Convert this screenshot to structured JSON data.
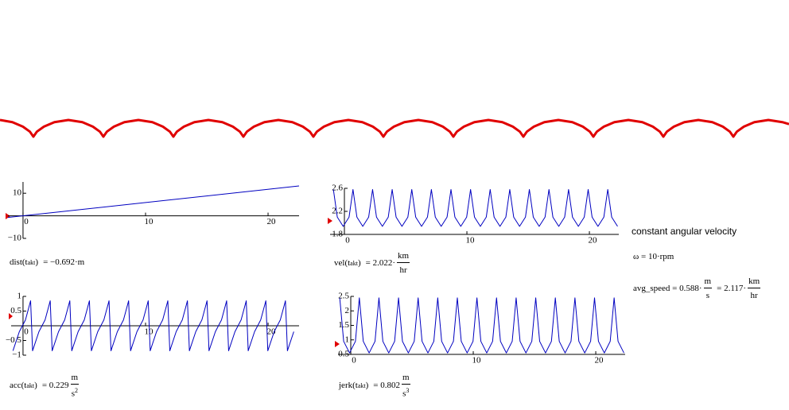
{
  "chart_data": [
    {
      "type": "line",
      "color": "#e00000",
      "x": [
        -0.477,
        -0.3,
        -0.15,
        -0.05,
        0,
        0.05,
        0.15,
        0.3,
        0.5,
        0.7,
        0.85,
        0.95,
        1,
        1.05,
        1.15,
        1.3,
        1.5,
        1.7,
        1.85,
        1.95,
        2,
        2.05,
        2.15,
        2.3,
        2.5,
        2.7,
        2.85,
        2.95,
        3,
        3.05,
        3.15,
        3.3,
        3.5,
        3.7,
        3.85,
        3.95,
        4,
        4.05,
        4.15,
        4.3,
        4.5,
        4.7,
        4.85,
        4.95,
        5,
        5.05,
        5.15,
        5.3,
        5.5,
        5.7,
        5.85,
        5.95,
        6,
        6.05,
        6.15,
        6.3,
        6.5,
        6.7,
        6.85,
        6.95,
        7,
        7.05,
        7.15,
        7.3,
        7.5,
        7.7,
        7.85,
        7.95,
        8,
        8.05,
        8.15,
        8.3,
        8.5,
        8.7,
        8.85,
        8.95,
        9,
        9.05,
        9.15,
        9.3,
        9.5,
        9.7,
        9.85,
        9.95,
        10,
        10.05,
        10.15,
        10.3,
        10.5,
        10.7,
        10.795
      ],
      "values": [
        1,
        0.87,
        0.6,
        0.3,
        0,
        0.3,
        0.6,
        0.87,
        1,
        0.87,
        0.6,
        0.3,
        0,
        0.3,
        0.6,
        0.87,
        1,
        0.87,
        0.6,
        0.3,
        0,
        0.3,
        0.6,
        0.87,
        1,
        0.87,
        0.6,
        0.3,
        0,
        0.3,
        0.6,
        0.87,
        1,
        0.87,
        0.6,
        0.3,
        0,
        0.3,
        0.6,
        0.87,
        1,
        0.87,
        0.6,
        0.3,
        0,
        0.3,
        0.6,
        0.87,
        1,
        0.87,
        0.6,
        0.3,
        0,
        0.3,
        0.6,
        0.87,
        1,
        0.87,
        0.6,
        0.3,
        0,
        0.3,
        0.6,
        0.87,
        1,
        0.87,
        0.6,
        0.3,
        0,
        0.3,
        0.6,
        0.87,
        1,
        0.87,
        0.6,
        0.3,
        0,
        0.3,
        0.6,
        0.87,
        1,
        0.87,
        0.6,
        0.3,
        0,
        0.3,
        0.6,
        0.87,
        1,
        0.87,
        0.75
      ],
      "xlim": [
        -0.477,
        10.795
      ],
      "ylim": [
        0,
        1
      ]
    },
    {
      "type": "line",
      "color": "#0000c0",
      "x": [
        -1.23,
        22.53
      ],
      "values": [
        -0.72,
        13.25
      ],
      "xlim": [
        -1.23,
        22.53
      ],
      "ylim": [
        -10,
        15
      ],
      "xticks": [
        0,
        10,
        20
      ],
      "yticks": [
        10,
        {
          "value": -10,
          "label": "−10"
        }
      ]
    },
    {
      "type": "line",
      "color": "#0000c0",
      "x": [
        -0.9,
        -0.58,
        -0.1,
        0.38,
        0.7,
        1.02,
        1.5,
        1.98,
        2.3,
        2.62,
        3.1,
        3.58,
        3.9,
        4.22,
        4.7,
        5.18,
        5.5,
        5.82,
        6.3,
        6.78,
        7.1,
        7.42,
        7.9,
        8.38,
        8.7,
        9.02,
        9.5,
        9.98,
        10.3,
        10.62,
        11.1,
        11.58,
        11.9,
        12.22,
        12.7,
        13.18,
        13.5,
        13.82,
        14.3,
        14.78,
        15.1,
        15.42,
        15.9,
        16.38,
        16.7,
        17.02,
        17.5,
        17.98,
        18.3,
        18.62,
        19.1,
        19.58,
        19.9,
        20.22,
        20.7,
        21.18,
        21.5,
        21.82,
        22.3
      ],
      "values": [
        2.58,
        2.1,
        1.94,
        2.1,
        2.58,
        2.1,
        1.94,
        2.1,
        2.58,
        2.1,
        1.94,
        2.1,
        2.58,
        2.1,
        1.94,
        2.1,
        2.58,
        2.1,
        1.94,
        2.1,
        2.58,
        2.1,
        1.94,
        2.1,
        2.58,
        2.1,
        1.94,
        2.1,
        2.58,
        2.1,
        1.94,
        2.1,
        2.58,
        2.1,
        1.94,
        2.1,
        2.58,
        2.1,
        1.94,
        2.1,
        2.58,
        2.1,
        1.94,
        2.1,
        2.58,
        2.1,
        1.94,
        2.1,
        2.58,
        2.1,
        1.94,
        2.1,
        2.58,
        2.1,
        1.94,
        2.1,
        2.58,
        2.1,
        1.94
      ],
      "xlim": [
        -1.17,
        22.4
      ],
      "ylim": [
        1.8,
        2.6
      ],
      "xticks": [
        0,
        10,
        20
      ],
      "yticks": [
        2.6,
        2.2,
        1.8
      ]
    },
    {
      "type": "line",
      "color": "#0000c0",
      "x": [
        -0.82,
        -0.3,
        0.2,
        0.62,
        0.78,
        1.3,
        1.8,
        2.22,
        2.38,
        2.9,
        3.4,
        3.82,
        3.98,
        4.5,
        5,
        5.42,
        5.58,
        6.1,
        6.6,
        7.02,
        7.18,
        7.7,
        8.2,
        8.62,
        8.78,
        9.3,
        9.8,
        10.22,
        10.38,
        10.9,
        11.4,
        11.82,
        11.98,
        12.5,
        13,
        13.42,
        13.58,
        14.1,
        14.6,
        15.02,
        15.18,
        15.7,
        16.2,
        16.62,
        16.78,
        17.3,
        17.8,
        18.22,
        18.38,
        18.9,
        19.4,
        19.82,
        19.98,
        20.5,
        21,
        21.42,
        21.58,
        22.1
      ],
      "values": [
        -0.85,
        -0.2,
        0.2,
        0.85,
        -0.85,
        -0.2,
        0.2,
        0.85,
        -0.85,
        -0.2,
        0.2,
        0.85,
        -0.85,
        -0.2,
        0.2,
        0.85,
        -0.85,
        -0.2,
        0.2,
        0.85,
        -0.85,
        -0.2,
        0.2,
        0.85,
        -0.85,
        -0.2,
        0.2,
        0.85,
        -0.85,
        -0.2,
        0.2,
        0.85,
        -0.85,
        -0.2,
        0.2,
        0.85,
        -0.85,
        -0.2,
        0.2,
        0.85,
        -0.85,
        -0.2,
        0.2,
        0.85,
        -0.85,
        -0.2,
        0.2,
        0.85,
        -0.85,
        -0.2,
        0.2,
        0.85,
        -0.85,
        -0.2,
        0.2,
        0.85,
        -0.85,
        -0.2
      ],
      "xlim": [
        -0.97,
        22.53
      ],
      "ylim": [
        -1,
        1
      ],
      "xticks": [
        0,
        10,
        20
      ],
      "yticks": [
        1,
        0.5,
        {
          "value": -0.5,
          "label": "−0.5"
        },
        {
          "value": -1,
          "label": "−1"
        }
      ]
    },
    {
      "type": "line",
      "color": "#0000c0",
      "x": [
        -0.9,
        -0.58,
        -0.1,
        0.38,
        0.7,
        1.02,
        1.5,
        1.98,
        2.3,
        2.62,
        3.1,
        3.58,
        3.9,
        4.22,
        4.7,
        5.18,
        5.5,
        5.82,
        6.3,
        6.78,
        7.1,
        7.42,
        7.9,
        8.38,
        8.7,
        9.02,
        9.5,
        9.98,
        10.3,
        10.62,
        11.1,
        11.58,
        11.9,
        12.22,
        12.7,
        13.18,
        13.5,
        13.82,
        14.3,
        14.78,
        15.1,
        15.42,
        15.9,
        16.38,
        16.7,
        17.02,
        17.5,
        17.98,
        18.3,
        18.62,
        19.1,
        19.58,
        19.9,
        20.22,
        20.7,
        21.18,
        21.5,
        21.82,
        22.3
      ],
      "values": [
        2.45,
        0.95,
        0.55,
        0.95,
        2.45,
        0.95,
        0.55,
        0.95,
        2.45,
        0.95,
        0.55,
        0.95,
        2.45,
        0.95,
        0.55,
        0.95,
        2.45,
        0.95,
        0.55,
        0.95,
        2.45,
        0.95,
        0.55,
        0.95,
        2.45,
        0.95,
        0.55,
        0.95,
        2.45,
        0.95,
        0.55,
        0.95,
        2.45,
        0.95,
        0.55,
        0.95,
        2.45,
        0.95,
        0.55,
        0.95,
        2.45,
        0.95,
        0.55,
        0.95,
        2.45,
        0.95,
        0.55,
        0.95,
        2.45,
        0.95,
        0.55,
        0.95,
        2.45,
        0.95,
        0.55,
        0.95,
        2.45,
        0.95,
        0.55
      ],
      "xlim": [
        -1.04,
        22.4
      ],
      "ylim": [
        0.5,
        2.5
      ],
      "xticks": [
        0,
        10,
        20
      ],
      "yticks": [
        2.5,
        2,
        1.5,
        1,
        0.5
      ]
    }
  ],
  "readouts": [
    {
      "head": "dist(t",
      "sub": "akt",
      "tail": ")",
      "value": "= −0.692·m"
    },
    {
      "head": "vel(t",
      "sub": "akt",
      "tail": ")",
      "value": "= 2.022·",
      "unit_num": "km",
      "unit_den": "hr"
    },
    {
      "head": "acc(t",
      "sub": "akt",
      "tail": ")",
      "value": "= 0.229",
      "unit_num": "m",
      "unit_den": "s",
      "unit_den_exp": "2"
    },
    {
      "head": "jerk(t",
      "sub": "akt",
      "tail": ")",
      "value": "= 0.802",
      "unit_num": "m",
      "unit_den": "s",
      "unit_den_exp": "3"
    }
  ],
  "notes": {
    "heading": "constant angular velocity",
    "omega": "ω = 10·rpm",
    "avg": {
      "head": "avg_speed  =  0.588·",
      "num1": "m",
      "den1": "s",
      "mid": "= 2.117·",
      "num2": "km",
      "den2": "hr"
    }
  }
}
